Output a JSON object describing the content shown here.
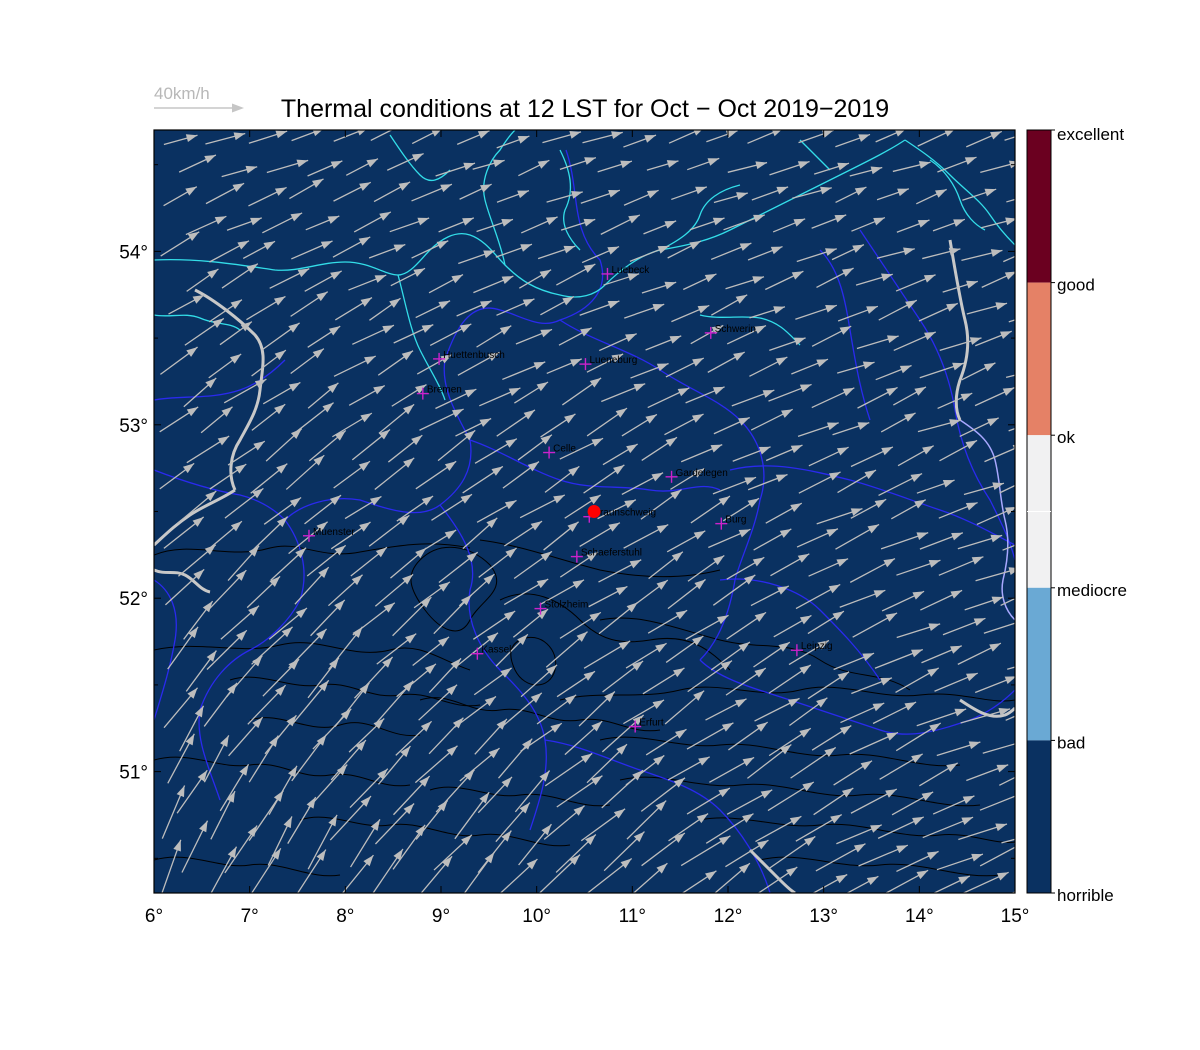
{
  "title": "Thermal conditions at 12 LST for Oct − Oct  2019−2019",
  "reference_vector": {
    "label": "40km/h"
  },
  "map": {
    "background_color": "#0a3161",
    "lon_range": [
      6,
      15
    ],
    "lat_range": [
      50.3,
      54.7
    ],
    "x_ticks": [
      {
        "value": 6,
        "label": "6°"
      },
      {
        "value": 7,
        "label": "7°"
      },
      {
        "value": 8,
        "label": "8°"
      },
      {
        "value": 9,
        "label": "9°"
      },
      {
        "value": 10,
        "label": "10°"
      },
      {
        "value": 11,
        "label": "11°"
      },
      {
        "value": 12,
        "label": "12°"
      },
      {
        "value": 13,
        "label": "13°"
      },
      {
        "value": 14,
        "label": "14°"
      },
      {
        "value": 15,
        "label": "15°"
      }
    ],
    "y_ticks": [
      {
        "value": 51,
        "label": "51°"
      },
      {
        "value": 52,
        "label": "52°"
      },
      {
        "value": 53,
        "label": "53°"
      },
      {
        "value": 54,
        "label": "54°"
      }
    ],
    "highlight_point": {
      "name": "Braunschweig",
      "lon": 10.6,
      "lat": 52.5,
      "color": "#ff0000"
    },
    "cities": [
      {
        "name": "Luebeck",
        "lon": 10.74,
        "lat": 53.87
      },
      {
        "name": "Schwerin",
        "lon": 11.82,
        "lat": 53.53
      },
      {
        "name": "Huettenbusch",
        "lon": 8.98,
        "lat": 53.38
      },
      {
        "name": "Lueneburg",
        "lon": 10.51,
        "lat": 53.35
      },
      {
        "name": "Bremen",
        "lon": 8.81,
        "lat": 53.18
      },
      {
        "name": "Celle",
        "lon": 10.13,
        "lat": 52.84
      },
      {
        "name": "Gardelegen",
        "lon": 11.41,
        "lat": 52.7
      },
      {
        "name": "Braunschweig",
        "lon": 10.55,
        "lat": 52.47
      },
      {
        "name": "Burg",
        "lon": 11.93,
        "lat": 52.43
      },
      {
        "name": "Muenster",
        "lon": 7.62,
        "lat": 52.36
      },
      {
        "name": "Schaeferstuhl",
        "lon": 10.42,
        "lat": 52.24
      },
      {
        "name": "Stolzheim",
        "lon": 10.04,
        "lat": 51.94
      },
      {
        "name": "Kassel",
        "lon": 9.38,
        "lat": 51.68
      },
      {
        "name": "Leipzig",
        "lon": 12.72,
        "lat": 51.7
      },
      {
        "name": "Erfurt",
        "lon": 11.03,
        "lat": 51.26
      }
    ],
    "colors": {
      "coast": "#33dde8",
      "borders": "#2a2aee",
      "rivers": "#c8c8c8",
      "contours": "#000000",
      "wind_arrows": "#bdbdbd",
      "city_marker": "#cc22cc"
    }
  },
  "colorbar": {
    "segments": [
      {
        "color": "#6b0020"
      },
      {
        "color": "#e58166"
      },
      {
        "color": "#f1f1f2"
      },
      {
        "color": "#6aa9d4"
      },
      {
        "color": "#0a3161"
      }
    ],
    "labels": [
      {
        "text": "excellent"
      },
      {
        "text": "good"
      },
      {
        "text": "ok"
      },
      {
        "text": "mediocre"
      },
      {
        "text": "bad"
      },
      {
        "text": "horrible"
      }
    ]
  }
}
